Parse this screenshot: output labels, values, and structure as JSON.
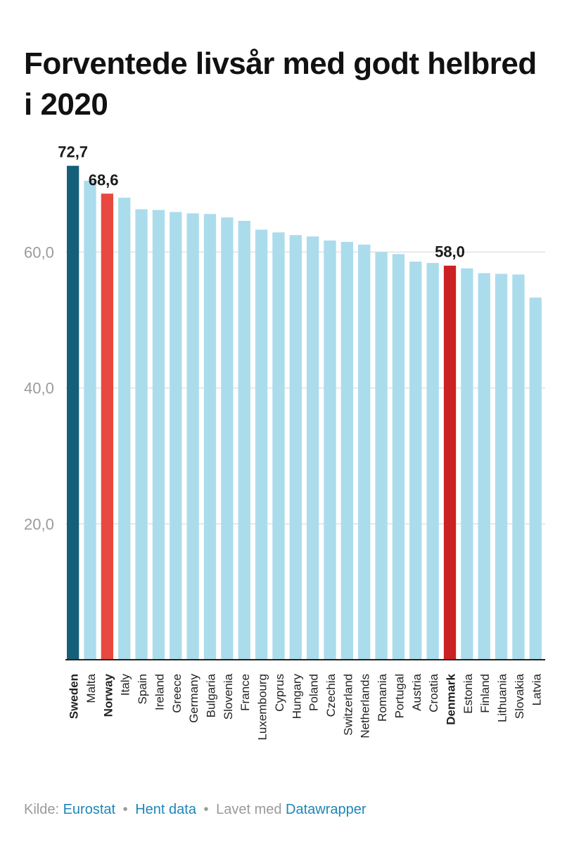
{
  "title": "Forventede livsår med godt helbred i 2020",
  "chart_data": {
    "type": "bar",
    "title": "Forventede livsår med godt helbred i 2020",
    "xlabel": "",
    "ylabel": "",
    "ylim": [
      0,
      74
    ],
    "y_ticks": [
      "20,0",
      "40,0",
      "60,0"
    ],
    "y_tick_values": [
      20,
      40,
      60
    ],
    "grid": true,
    "categories": [
      "Sweden",
      "Malta",
      "Norway",
      "Italy",
      "Spain",
      "Ireland",
      "Greece",
      "Germany",
      "Bulgaria",
      "Slovenia",
      "France",
      "Luxembourg",
      "Cyprus",
      "Hungary",
      "Poland",
      "Czechia",
      "Switzerland",
      "Netherlands",
      "Romania",
      "Portugal",
      "Austria",
      "Croatia",
      "Denmark",
      "Estonia",
      "Finland",
      "Lithuania",
      "Slovakia",
      "Latvia"
    ],
    "values": [
      72.7,
      70.5,
      68.6,
      68.0,
      66.3,
      66.2,
      65.9,
      65.7,
      65.6,
      65.1,
      64.6,
      63.3,
      62.9,
      62.5,
      62.3,
      61.7,
      61.5,
      61.1,
      60.0,
      59.7,
      58.6,
      58.4,
      58.0,
      57.6,
      56.9,
      56.8,
      56.7,
      53.3
    ],
    "highlight": [
      "Sweden",
      "Norway",
      "Denmark"
    ],
    "data_labels": [
      {
        "category": "Sweden",
        "text": "72,7"
      },
      {
        "category": "Norway",
        "text": "68,6"
      },
      {
        "category": "Denmark",
        "text": "58,0"
      }
    ],
    "colors": {
      "default": "#abdcec",
      "Sweden": "#155f7a",
      "Norway": "#e8483f",
      "Denmark": "#cc2122",
      "grid": "#e2e2e2",
      "axis": "#222222",
      "tick_text": "#9b9b9b"
    }
  },
  "footer": {
    "prefix": "Kilde:",
    "source": "Eurostat",
    "separator1": "•",
    "get_data": "Hent data",
    "separator2": "•",
    "made_with": "Lavet med",
    "tool": "Datawrapper"
  }
}
